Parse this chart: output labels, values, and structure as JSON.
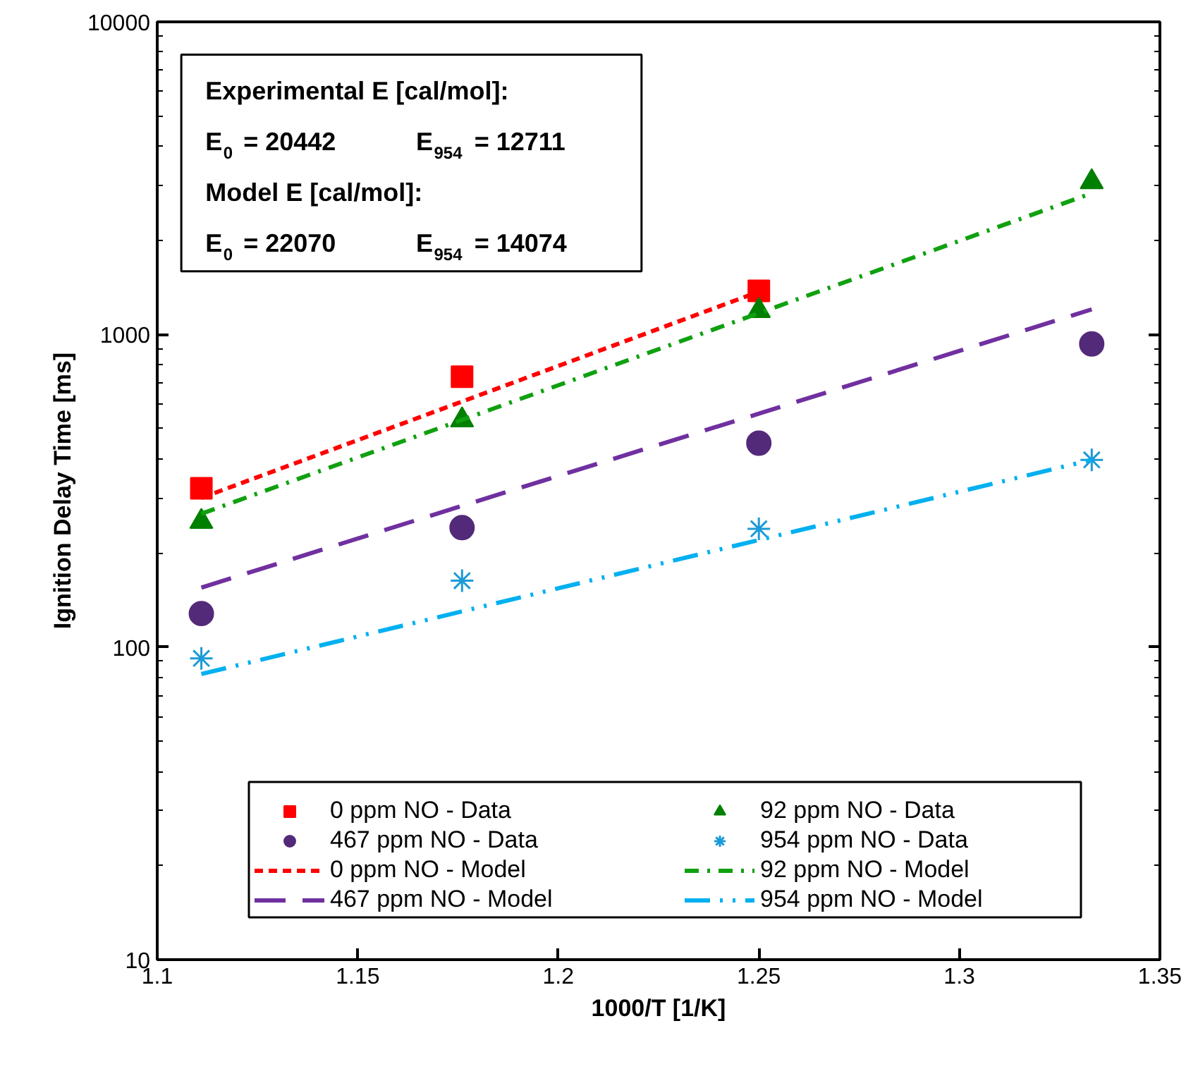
{
  "chart_data": {
    "type": "scatter",
    "xlabel": "1000/T [1/K]",
    "ylabel": "Ignition Delay Time [ms]",
    "log": "y",
    "grid": false,
    "legend": "bottom",
    "xlim": [
      1.1,
      1.35
    ],
    "xticks": [
      {
        "value": 1.1,
        "label": "1.1"
      },
      1.15,
      {
        "value": 1.2,
        "label": "1.2"
      },
      1.25,
      {
        "value": 1.3,
        "label": "1.3"
      },
      1.35
    ],
    "ylim": [
      10,
      10000
    ],
    "yticks": [
      10,
      100,
      1000,
      10000
    ],
    "annotations": [
      "Experimental E [cal/mol]:",
      "E$_{0}$ = 20442",
      "E$_{954}$ = 12711",
      "Model E [cal/mol]:",
      "E$_{0}$ = 22070",
      "E$_{954}$ = 14074"
    ],
    "series": [
      {
        "name": "0 ppm NO - Data",
        "type": "scatter",
        "marker": "square",
        "color": "#ff0000",
        "x": [
          1.111,
          1.176,
          1.25
        ],
        "values": [
          322,
          733,
          1378
        ]
      },
      {
        "name": "92 ppm NO - Data",
        "type": "scatter",
        "marker": "triangle",
        "color": "#008000",
        "x": [
          1.111,
          1.176,
          1.25,
          1.333
        ],
        "values": [
          252,
          532,
          1191,
          3077
        ]
      },
      {
        "name": "467 ppm NO - Data",
        "type": "scatter",
        "marker": "circle",
        "color": "#532a7a",
        "x": [
          1.111,
          1.176,
          1.25,
          1.333
        ],
        "values": [
          128,
          241,
          449,
          933
        ]
      },
      {
        "name": "954 ppm NO - Data",
        "type": "scatter",
        "marker": "cross",
        "color": "#1c9ad6",
        "x": [
          1.111,
          1.176,
          1.25,
          1.333
        ],
        "values": [
          92,
          163,
          239,
          397
        ]
      },
      {
        "name": "0 ppm NO - Model",
        "type": "line",
        "line_style": "dashed",
        "color": "#ff0000",
        "x": [
          1.111,
          1.176,
          1.25
        ],
        "values": [
          300,
          610,
          1370
        ]
      },
      {
        "name": "92 ppm NO - Model",
        "type": "line",
        "line_style": "dashdot",
        "color": "#10a010",
        "x": [
          1.111,
          1.176,
          1.25,
          1.333
        ],
        "values": [
          267,
          533,
          1170,
          2830
        ]
      },
      {
        "name": "467 ppm NO - Model",
        "type": "line",
        "line_style": "longdash",
        "color": "#7030a0",
        "x": [
          1.111,
          1.176,
          1.25,
          1.333
        ],
        "values": [
          155,
          283,
          558,
          1203
        ]
      },
      {
        "name": "954 ppm NO - Model",
        "type": "line",
        "line_style": "dashdotdot",
        "color": "#00b0f0",
        "x": [
          1.111,
          1.176,
          1.25,
          1.333
        ],
        "values": [
          82,
          130,
          220,
          397
        ]
      }
    ]
  }
}
